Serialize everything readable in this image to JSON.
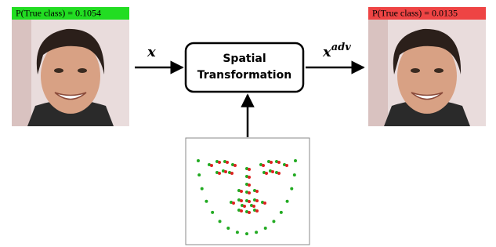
{
  "input_image": {
    "caption": "P(True class) = 0.1054"
  },
  "output_image": {
    "caption": "P(True class) = 0.0135"
  },
  "edges": {
    "input_label": "x",
    "output_label_base": "x",
    "output_label_sup": "adv"
  },
  "transform_box": {
    "line1": "Spatial",
    "line2": "Transformation"
  }
}
